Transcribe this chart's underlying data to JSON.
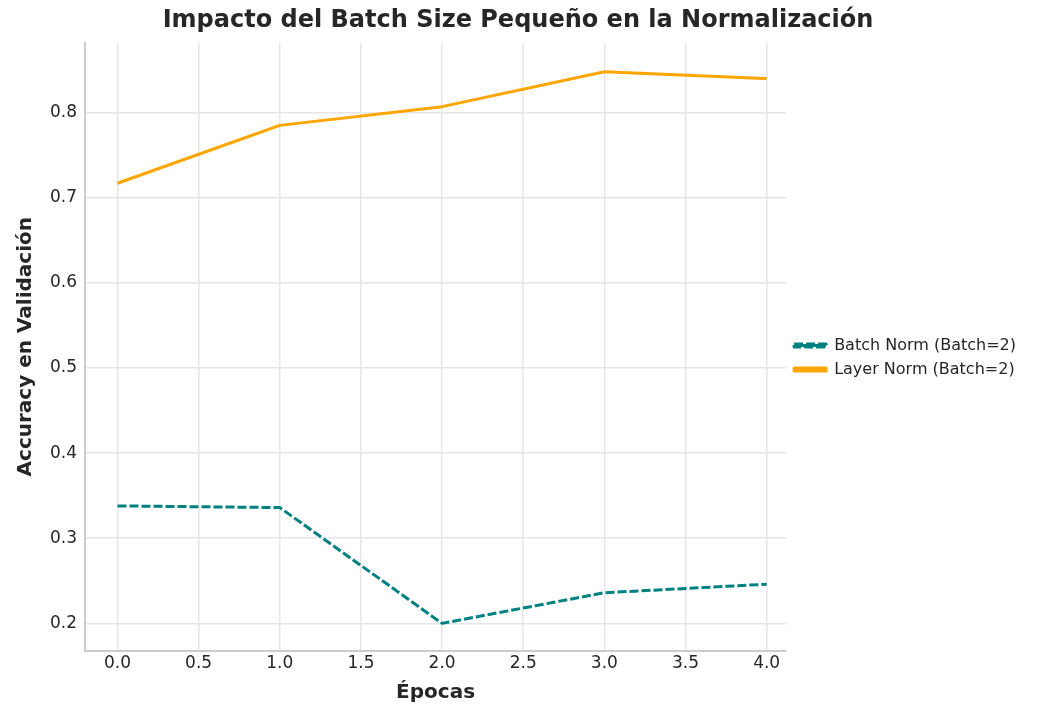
{
  "chart_data": {
    "type": "line",
    "title": "Impacto del Batch Size Pequeño en la Normalización",
    "xlabel": "Épocas",
    "ylabel": "Accuracy en Validación",
    "x": [
      0,
      1,
      2,
      3,
      4
    ],
    "series": [
      {
        "name": "Batch Norm (Batch=2)",
        "color": "#008080",
        "line_style": "dashed",
        "values": [
          0.338,
          0.336,
          0.2,
          0.236,
          0.246
        ]
      },
      {
        "name": "Layer Norm (Batch=2)",
        "color": "#ffa500",
        "line_style": "solid",
        "values": [
          0.717,
          0.785,
          0.807,
          0.848,
          0.84
        ]
      }
    ],
    "xlim": [
      -0.2,
      4.12
    ],
    "xticks": [
      {
        "value": 0,
        "label": "0.0"
      },
      {
        "value": 0.5,
        "label": "0.5"
      },
      {
        "value": 1,
        "label": "1.0"
      },
      {
        "value": 1.5,
        "label": "1.5"
      },
      {
        "value": 2,
        "label": "2.0"
      },
      {
        "value": 2.5,
        "label": "2.5"
      },
      {
        "value": 3,
        "label": "3.0"
      },
      {
        "value": 3.5,
        "label": "3.5"
      },
      {
        "value": 4,
        "label": "4.0"
      }
    ],
    "ylim": [
      0.168,
      0.882
    ],
    "yticks": [
      0.2,
      0.3,
      0.4,
      0.5,
      0.6,
      0.7,
      0.8
    ],
    "grid": true,
    "legend": "right",
    "marker": "none"
  }
}
